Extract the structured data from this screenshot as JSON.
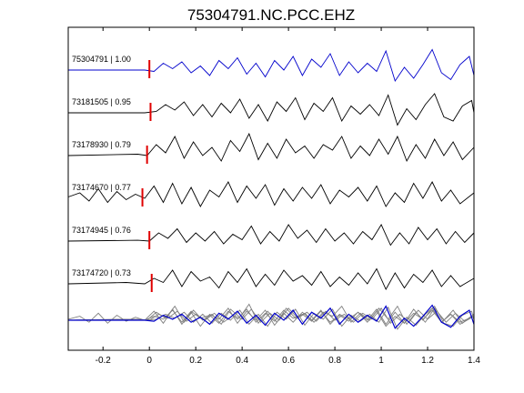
{
  "chart_data": {
    "type": "line",
    "title": "75304791.NC.PCC.EHZ",
    "xlabel": "",
    "ylabel": "",
    "xlim": [
      -0.35,
      1.4
    ],
    "xticks": [
      -0.2,
      0,
      0.2,
      0.4,
      0.6,
      0.8,
      1,
      1.2,
      1.4
    ],
    "xtick_labels": [
      "-0.2",
      "0",
      "0.2",
      "0.4",
      "0.6",
      "0.8",
      "1",
      "1.2",
      "1.4"
    ],
    "grid": false,
    "colors": {
      "reference": "#0000cc",
      "trace": "#000000",
      "overlay": "#808080",
      "pick": "#e00000"
    },
    "traces": [
      {
        "event": "75304791",
        "cc": "1.00",
        "label": "75304791 | 1.00",
        "pick_time": 0.0,
        "color": "reference",
        "points": [
          [
            -0.35,
            0
          ],
          [
            -0.02,
            0
          ],
          [
            0.02,
            -0.05
          ],
          [
            0.06,
            0.25
          ],
          [
            0.1,
            0.05
          ],
          [
            0.14,
            0.3
          ],
          [
            0.18,
            -0.1
          ],
          [
            0.22,
            0.15
          ],
          [
            0.26,
            -0.2
          ],
          [
            0.3,
            0.35
          ],
          [
            0.34,
            0.05
          ],
          [
            0.38,
            0.45
          ],
          [
            0.42,
            -0.15
          ],
          [
            0.46,
            0.25
          ],
          [
            0.5,
            -0.25
          ],
          [
            0.54,
            0.35
          ],
          [
            0.58,
            0.0
          ],
          [
            0.62,
            0.5
          ],
          [
            0.66,
            -0.2
          ],
          [
            0.7,
            0.4
          ],
          [
            0.74,
            0.1
          ],
          [
            0.78,
            0.6
          ],
          [
            0.82,
            -0.2
          ],
          [
            0.86,
            0.3
          ],
          [
            0.9,
            -0.1
          ],
          [
            0.94,
            0.25
          ],
          [
            0.98,
            -0.05
          ],
          [
            1.02,
            0.7
          ],
          [
            1.06,
            -0.4
          ],
          [
            1.1,
            0.1
          ],
          [
            1.14,
            -0.3
          ],
          [
            1.18,
            0.2
          ],
          [
            1.22,
            0.75
          ],
          [
            1.26,
            -0.1
          ],
          [
            1.3,
            -0.35
          ],
          [
            1.34,
            0.2
          ],
          [
            1.38,
            0.5
          ],
          [
            1.4,
            -0.2
          ]
        ]
      },
      {
        "event": "73181505",
        "cc": "0.95",
        "label": "73181505 | 0.95",
        "pick_time": 0.005,
        "color": "trace",
        "points": [
          [
            -0.35,
            0
          ],
          [
            -0.02,
            0
          ],
          [
            0.03,
            0.05
          ],
          [
            0.07,
            0.3
          ],
          [
            0.11,
            0.1
          ],
          [
            0.15,
            0.4
          ],
          [
            0.19,
            -0.1
          ],
          [
            0.23,
            0.3
          ],
          [
            0.27,
            -0.15
          ],
          [
            0.31,
            0.35
          ],
          [
            0.35,
            0.0
          ],
          [
            0.39,
            0.5
          ],
          [
            0.43,
            -0.2
          ],
          [
            0.47,
            0.3
          ],
          [
            0.51,
            -0.3
          ],
          [
            0.55,
            0.4
          ],
          [
            0.59,
            0.05
          ],
          [
            0.63,
            0.55
          ],
          [
            0.67,
            -0.25
          ],
          [
            0.71,
            0.35
          ],
          [
            0.75,
            0.05
          ],
          [
            0.79,
            0.55
          ],
          [
            0.83,
            -0.3
          ],
          [
            0.87,
            0.25
          ],
          [
            0.91,
            -0.05
          ],
          [
            0.95,
            0.3
          ],
          [
            0.99,
            -0.1
          ],
          [
            1.03,
            0.65
          ],
          [
            1.07,
            -0.45
          ],
          [
            1.11,
            0.15
          ],
          [
            1.15,
            -0.25
          ],
          [
            1.19,
            0.3
          ],
          [
            1.23,
            0.7
          ],
          [
            1.27,
            -0.15
          ],
          [
            1.31,
            -0.3
          ],
          [
            1.35,
            0.25
          ],
          [
            1.39,
            0.45
          ],
          [
            1.4,
            0.0
          ]
        ]
      },
      {
        "event": "73178930",
        "cc": "0.79",
        "label": "73178930 | 0.79",
        "pick_time": -0.01,
        "color": "trace",
        "points": [
          [
            -0.35,
            0
          ],
          [
            -0.05,
            0.05
          ],
          [
            -0.01,
            0
          ],
          [
            0.03,
            0.4
          ],
          [
            0.07,
            0.1
          ],
          [
            0.11,
            0.7
          ],
          [
            0.15,
            -0.1
          ],
          [
            0.19,
            0.5
          ],
          [
            0.23,
            0.0
          ],
          [
            0.27,
            0.3
          ],
          [
            0.31,
            -0.2
          ],
          [
            0.35,
            0.55
          ],
          [
            0.39,
            0.15
          ],
          [
            0.43,
            0.8
          ],
          [
            0.47,
            -0.15
          ],
          [
            0.51,
            0.45
          ],
          [
            0.55,
            -0.1
          ],
          [
            0.59,
            0.6
          ],
          [
            0.63,
            0.1
          ],
          [
            0.67,
            0.35
          ],
          [
            0.71,
            -0.1
          ],
          [
            0.75,
            0.4
          ],
          [
            0.79,
            0.2
          ],
          [
            0.83,
            0.7
          ],
          [
            0.87,
            -0.1
          ],
          [
            0.91,
            0.35
          ],
          [
            0.95,
            0.0
          ],
          [
            0.99,
            0.6
          ],
          [
            1.03,
            0.05
          ],
          [
            1.07,
            0.7
          ],
          [
            1.11,
            -0.2
          ],
          [
            1.15,
            0.4
          ],
          [
            1.19,
            -0.1
          ],
          [
            1.23,
            0.6
          ],
          [
            1.27,
            0.0
          ],
          [
            1.31,
            0.5
          ],
          [
            1.35,
            -0.15
          ],
          [
            1.4,
            0.3
          ]
        ]
      },
      {
        "event": "73174670",
        "cc": "0.77",
        "label": "73174670 | 0.77",
        "pick_time": -0.03,
        "color": "trace",
        "points": [
          [
            -0.35,
            0.05
          ],
          [
            -0.3,
            0.2
          ],
          [
            -0.26,
            -0.1
          ],
          [
            -0.22,
            0.35
          ],
          [
            -0.18,
            -0.15
          ],
          [
            -0.14,
            0.25
          ],
          [
            -0.1,
            -0.05
          ],
          [
            -0.06,
            0.15
          ],
          [
            -0.02,
            0.0
          ],
          [
            0.02,
            0.45
          ],
          [
            0.06,
            -0.15
          ],
          [
            0.1,
            0.55
          ],
          [
            0.14,
            -0.2
          ],
          [
            0.18,
            0.4
          ],
          [
            0.22,
            -0.3
          ],
          [
            0.26,
            0.3
          ],
          [
            0.3,
            0.05
          ],
          [
            0.34,
            0.6
          ],
          [
            0.38,
            -0.15
          ],
          [
            0.42,
            0.45
          ],
          [
            0.46,
            0.0
          ],
          [
            0.5,
            0.5
          ],
          [
            0.54,
            -0.25
          ],
          [
            0.58,
            0.35
          ],
          [
            0.62,
            -0.1
          ],
          [
            0.66,
            0.4
          ],
          [
            0.7,
            0.0
          ],
          [
            0.74,
            0.5
          ],
          [
            0.78,
            -0.2
          ],
          [
            0.82,
            0.3
          ],
          [
            0.86,
            0.05
          ],
          [
            0.9,
            0.4
          ],
          [
            0.94,
            -0.1
          ],
          [
            0.98,
            0.45
          ],
          [
            1.02,
            -0.3
          ],
          [
            1.06,
            0.2
          ],
          [
            1.1,
            -0.15
          ],
          [
            1.14,
            0.55
          ],
          [
            1.18,
            0.0
          ],
          [
            1.22,
            0.6
          ],
          [
            1.26,
            -0.1
          ],
          [
            1.3,
            0.3
          ],
          [
            1.34,
            -0.2
          ],
          [
            1.4,
            0.2
          ]
        ]
      },
      {
        "event": "73174945",
        "cc": "0.76",
        "label": "73174945 | 0.76",
        "pick_time": 0.0,
        "color": "trace",
        "points": [
          [
            -0.35,
            0
          ],
          [
            -0.05,
            0.03
          ],
          [
            0.0,
            0
          ],
          [
            0.04,
            0.3
          ],
          [
            0.08,
            0.1
          ],
          [
            0.12,
            0.45
          ],
          [
            0.16,
            -0.05
          ],
          [
            0.2,
            0.3
          ],
          [
            0.24,
            0.0
          ],
          [
            0.28,
            0.35
          ],
          [
            0.32,
            -0.1
          ],
          [
            0.36,
            0.25
          ],
          [
            0.4,
            0.05
          ],
          [
            0.44,
            0.55
          ],
          [
            0.48,
            -0.1
          ],
          [
            0.52,
            0.35
          ],
          [
            0.56,
            0.0
          ],
          [
            0.6,
            0.6
          ],
          [
            0.64,
            0.1
          ],
          [
            0.68,
            0.4
          ],
          [
            0.72,
            -0.05
          ],
          [
            0.76,
            0.45
          ],
          [
            0.8,
            0.0
          ],
          [
            0.84,
            0.3
          ],
          [
            0.88,
            -0.1
          ],
          [
            0.92,
            0.35
          ],
          [
            0.96,
            0.05
          ],
          [
            1.0,
            0.6
          ],
          [
            1.04,
            -0.15
          ],
          [
            1.08,
            0.3
          ],
          [
            1.12,
            -0.1
          ],
          [
            1.16,
            0.5
          ],
          [
            1.2,
            0.05
          ],
          [
            1.24,
            0.45
          ],
          [
            1.28,
            -0.1
          ],
          [
            1.32,
            0.35
          ],
          [
            1.36,
            -0.05
          ],
          [
            1.4,
            0.3
          ]
        ]
      },
      {
        "event": "73174720",
        "cc": "0.73",
        "label": "73174720 | 0.73",
        "pick_time": 0.01,
        "color": "trace",
        "points": [
          [
            -0.35,
            0
          ],
          [
            -0.1,
            0.05
          ],
          [
            -0.02,
            0
          ],
          [
            0.02,
            0.2
          ],
          [
            0.06,
            0.05
          ],
          [
            0.1,
            0.5
          ],
          [
            0.14,
            -0.1
          ],
          [
            0.18,
            0.45
          ],
          [
            0.22,
            0.1
          ],
          [
            0.26,
            0.25
          ],
          [
            0.3,
            -0.15
          ],
          [
            0.34,
            0.45
          ],
          [
            0.38,
            0.05
          ],
          [
            0.42,
            0.55
          ],
          [
            0.46,
            -0.1
          ],
          [
            0.5,
            0.35
          ],
          [
            0.54,
            -0.05
          ],
          [
            0.58,
            0.5
          ],
          [
            0.62,
            0.1
          ],
          [
            0.66,
            0.3
          ],
          [
            0.7,
            -0.05
          ],
          [
            0.74,
            0.45
          ],
          [
            0.78,
            -0.1
          ],
          [
            0.82,
            0.25
          ],
          [
            0.86,
            -0.05
          ],
          [
            0.9,
            0.4
          ],
          [
            0.94,
            0.0
          ],
          [
            0.98,
            0.55
          ],
          [
            1.02,
            -0.2
          ],
          [
            1.06,
            0.4
          ],
          [
            1.1,
            -0.15
          ],
          [
            1.14,
            0.35
          ],
          [
            1.18,
            0.05
          ],
          [
            1.22,
            0.5
          ],
          [
            1.26,
            -0.1
          ],
          [
            1.3,
            0.3
          ],
          [
            1.34,
            -0.1
          ],
          [
            1.4,
            0.2
          ]
        ]
      }
    ]
  }
}
